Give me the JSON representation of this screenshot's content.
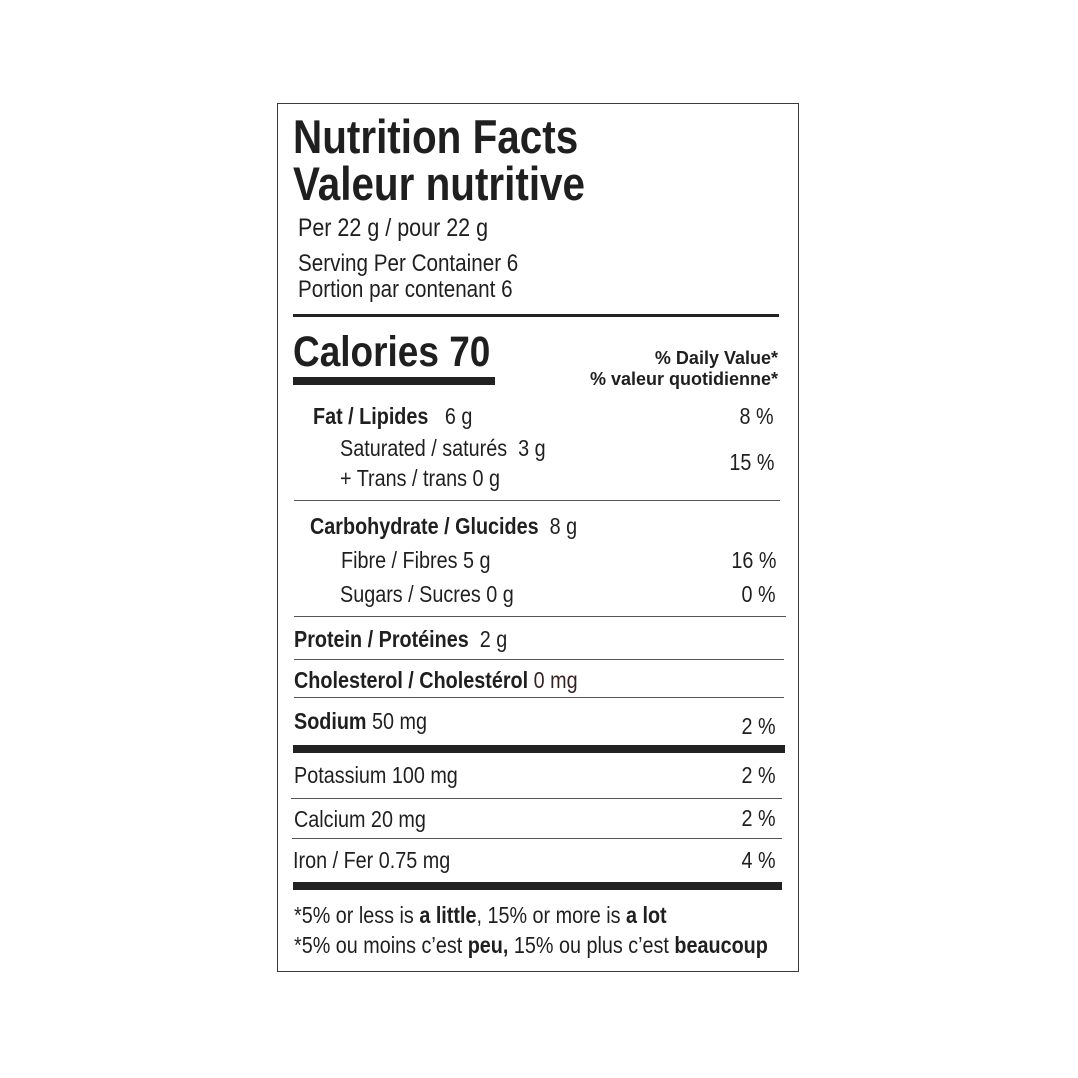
{
  "label": {
    "title_en": "Nutrition Facts",
    "title_fr": "Valeur nutritive",
    "serving_size": "Per 22 g / pour 22 g",
    "servings_en": "Serving Per Container 6",
    "servings_fr": "Portion par contenant 6",
    "calories_label": "Calories",
    "calories_value": "70",
    "dv_header_en": "% Daily Value*",
    "dv_header_fr": "% valeur quotidienne*",
    "nutrients": {
      "fat": {
        "label": "Fat / Lipides",
        "amount": "6 g",
        "dv": "8 %"
      },
      "saturated": {
        "label": "Saturated / saturés",
        "amount": "3 g"
      },
      "trans": {
        "label": "+ Trans / trans",
        "amount": "0 g"
      },
      "sat_trans_dv": "15 %",
      "carbohydrate": {
        "label": "Carbohydrate / Glucides",
        "amount": "8 g"
      },
      "fibre": {
        "label": "Fibre / Fibres 5 g",
        "dv": "16 %"
      },
      "sugars": {
        "label": "Sugars / Sucres 0 g",
        "dv": "0 %"
      },
      "protein": {
        "label": "Protein / Protéines",
        "amount": "2 g"
      },
      "cholesterol": {
        "label": "Cholesterol / Cholestérol",
        "amount": "0 mg"
      },
      "sodium": {
        "label": "Sodium",
        "amount": "50 mg",
        "dv": "2 %"
      },
      "potassium": {
        "label": "Potassium 100 mg",
        "dv": "2 %"
      },
      "calcium": {
        "label": "Calcium 20 mg",
        "dv": "2 %"
      },
      "iron": {
        "label": "Iron / Fer 0.75 mg",
        "dv": "4 %"
      }
    },
    "footnote_en": {
      "a": "*5% or less is ",
      "b": "a little",
      "c": ", 15% or more is ",
      "d": "a lot"
    },
    "footnote_fr": {
      "a": "*5% ou moins c’est ",
      "b": "peu,",
      "c": " 15% ou plus c’est ",
      "d": "beaucoup"
    },
    "colors": {
      "text": "#1f1f1f",
      "cholesterol_amount": "#3a1f22"
    }
  }
}
